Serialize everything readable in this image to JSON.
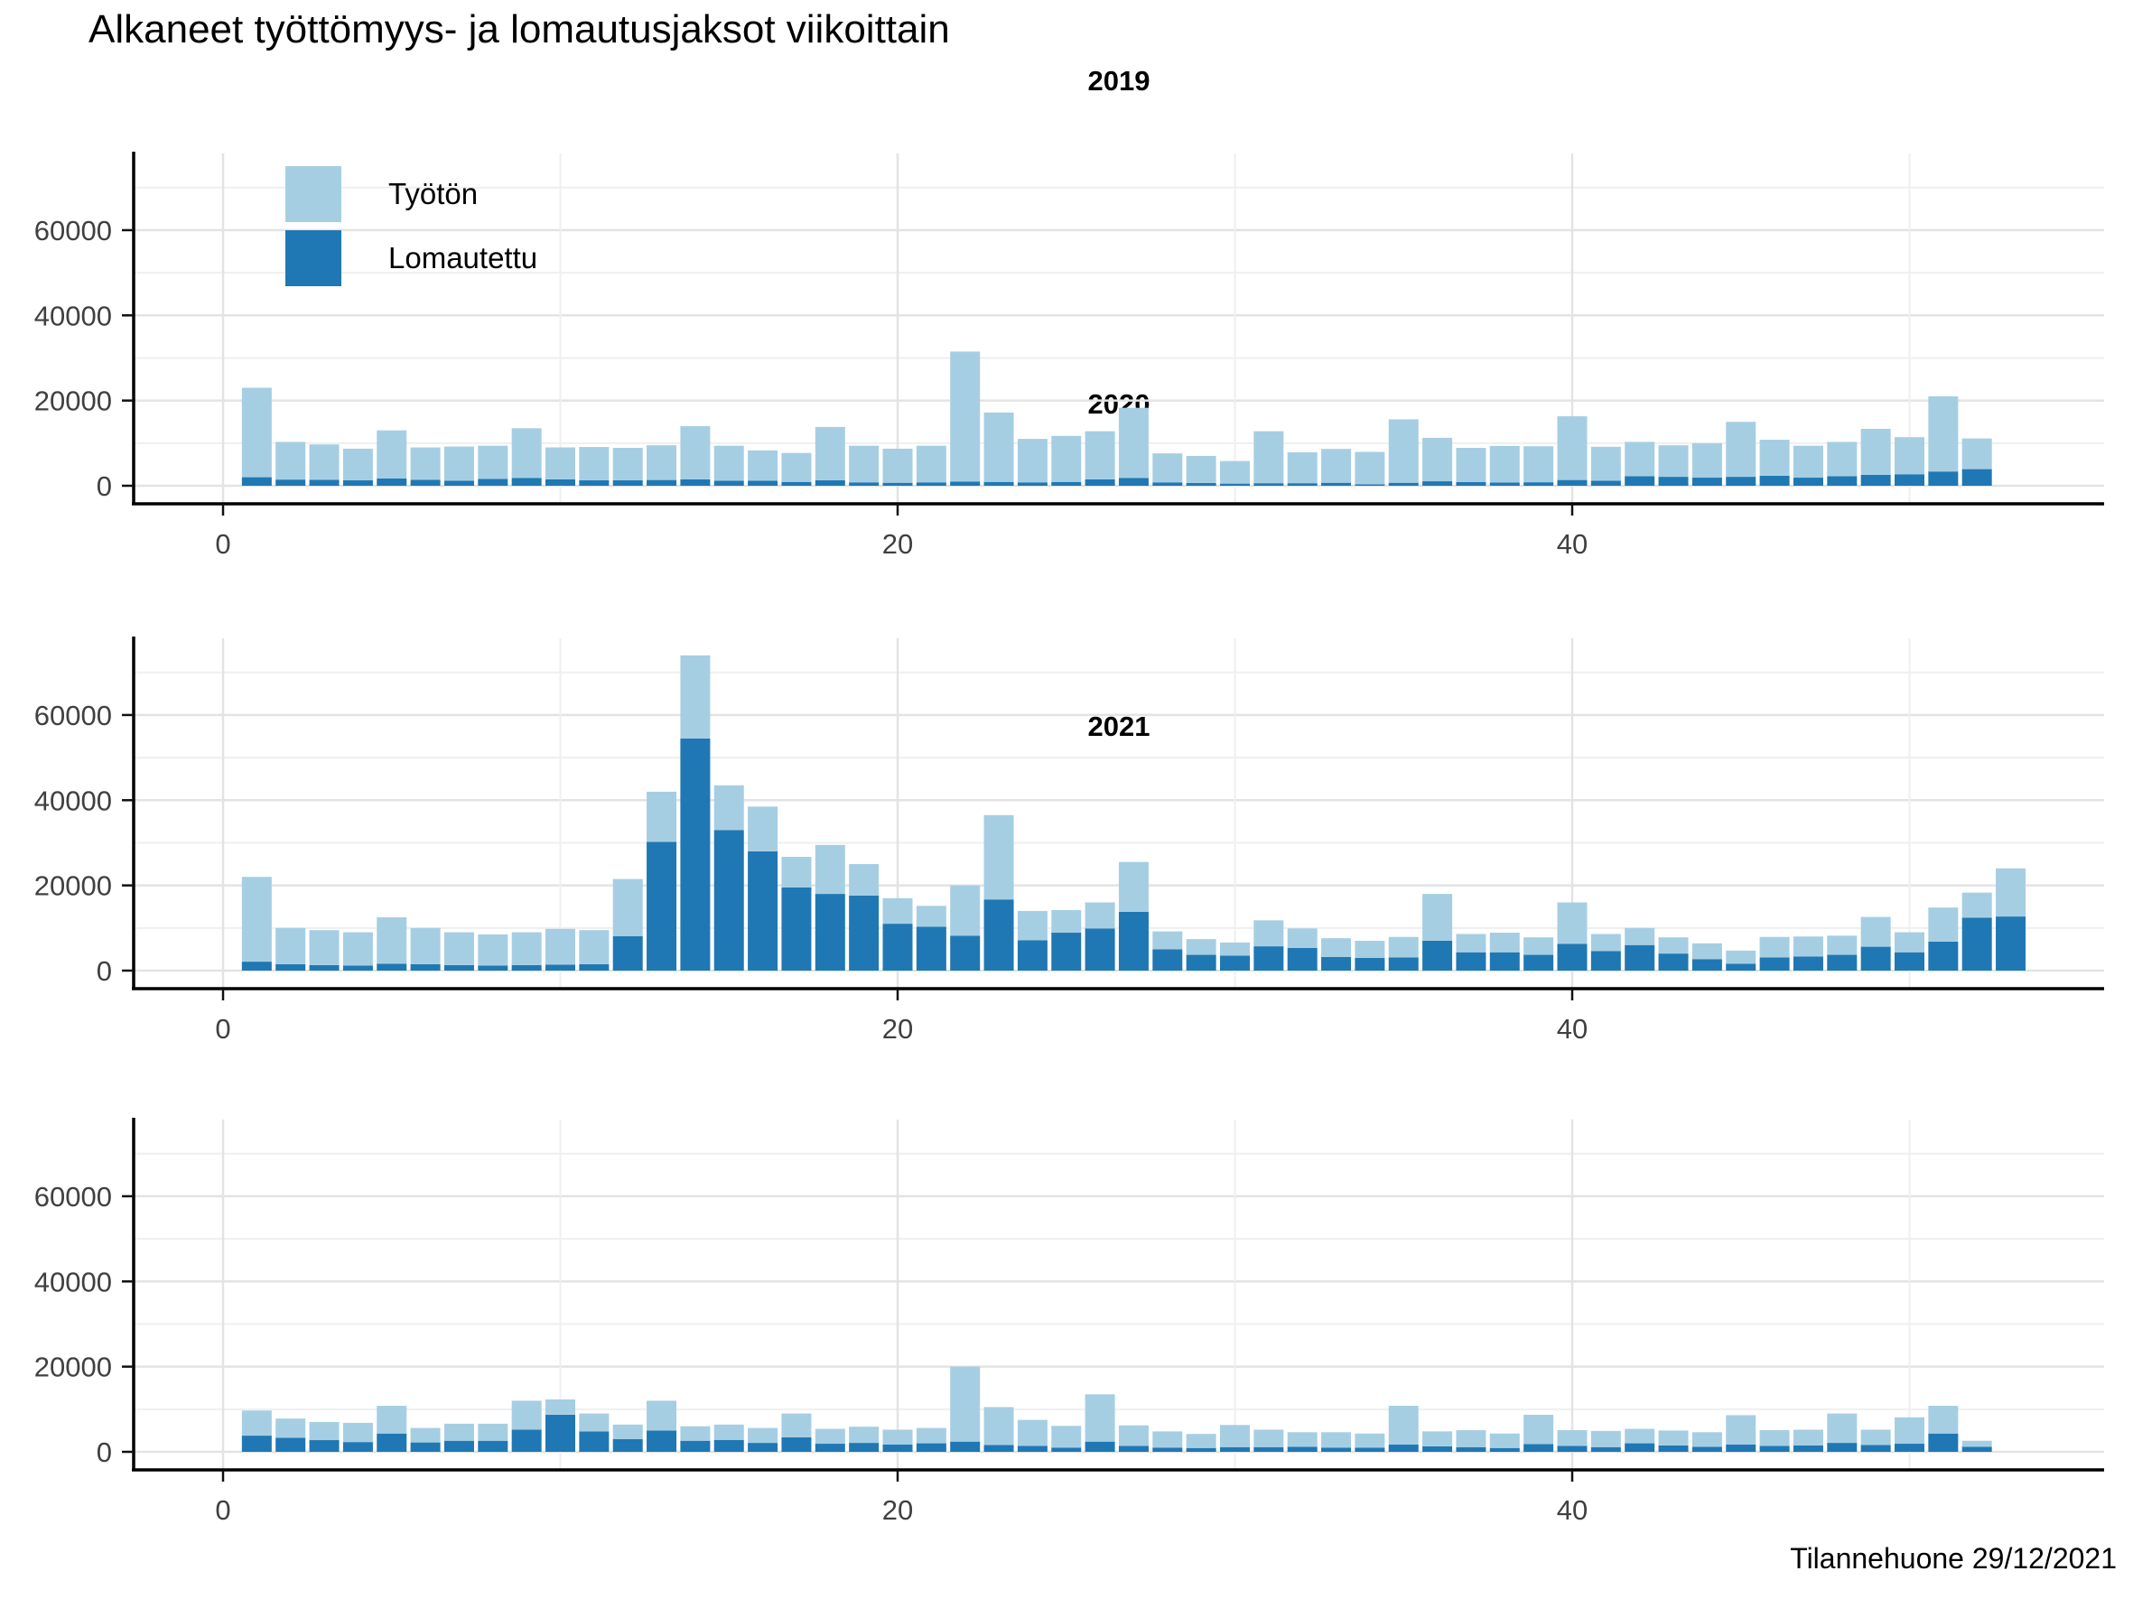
{
  "title": "Alkaneet työttömyys- ja lomautusjaksot viikoittain",
  "caption": "Tilannehuone 29/12/2021",
  "colors": {
    "tyoton": "#a6cee3",
    "lomautettu": "#1f78b4",
    "axis": "#000000",
    "tick_text": "#404040"
  },
  "legend": {
    "position": "top-left-inside-first-panel",
    "items": [
      {
        "label": "Työtön",
        "color": "#a6cee3"
      },
      {
        "label": "Lomautettu",
        "color": "#1f78b4"
      }
    ]
  },
  "chart_data": [
    {
      "type": "bar",
      "stacked": true,
      "title": "2019",
      "xlabel": "",
      "ylabel": "",
      "ylim": [
        0,
        78000
      ],
      "yticks": [
        0,
        20000,
        40000,
        60000
      ],
      "ytick_labels": [
        "0",
        "20000",
        "40000",
        "60000"
      ],
      "yminor": [
        10000,
        30000,
        50000,
        70000
      ],
      "xticks": [
        0,
        20,
        40
      ],
      "xtick_labels": [
        "0",
        "20",
        "40"
      ],
      "xminor": [
        10,
        30,
        50
      ],
      "grid": true,
      "categories": [
        1,
        2,
        3,
        4,
        5,
        6,
        7,
        8,
        9,
        10,
        11,
        12,
        13,
        14,
        15,
        16,
        17,
        18,
        19,
        20,
        21,
        22,
        23,
        24,
        25,
        26,
        27,
        28,
        29,
        30,
        31,
        32,
        33,
        34,
        35,
        36,
        37,
        38,
        39,
        40,
        41,
        42,
        43,
        44,
        45,
        46,
        47,
        48,
        49,
        50,
        51,
        52
      ],
      "series": [
        {
          "name": "Lomautettu",
          "color": "#1f78b4",
          "values": [
            2000,
            1450,
            1400,
            1300,
            1700,
            1400,
            1200,
            1600,
            1800,
            1500,
            1300,
            1300,
            1350,
            1500,
            1200,
            1200,
            900,
            1300,
            800,
            700,
            800,
            1000,
            900,
            800,
            900,
            1500,
            1800,
            800,
            650,
            500,
            600,
            600,
            700,
            350,
            700,
            1050,
            850,
            750,
            820,
            1350,
            1200,
            2250,
            2100,
            1900,
            2100,
            2350,
            1900,
            2250,
            2550,
            2700,
            3350,
            3900
          ]
        },
        {
          "name": "Työtön",
          "color": "#a6cee3",
          "values": [
            21000,
            8850,
            8300,
            7400,
            11300,
            7600,
            8000,
            7800,
            11700,
            7500,
            7800,
            7600,
            8150,
            12500,
            8200,
            7100,
            6800,
            12500,
            8600,
            8000,
            8600,
            30500,
            16300,
            10200,
            10800,
            11300,
            16500,
            6800,
            6350,
            5300,
            12200,
            7250,
            7950,
            7600,
            14900,
            10200,
            8050,
            8600,
            8460,
            14950,
            7950,
            8050,
            7400,
            8100,
            12900,
            8450,
            7500,
            8050,
            10800,
            8700,
            17650,
            7200
          ]
        }
      ]
    },
    {
      "type": "bar",
      "stacked": true,
      "title": "2020",
      "xlabel": "",
      "ylabel": "",
      "ylim": [
        0,
        78000
      ],
      "yticks": [
        0,
        20000,
        40000,
        60000
      ],
      "ytick_labels": [
        "0",
        "20000",
        "40000",
        "60000"
      ],
      "yminor": [
        10000,
        30000,
        50000,
        70000
      ],
      "xticks": [
        0,
        20,
        40
      ],
      "xtick_labels": [
        "0",
        "20",
        "40"
      ],
      "xminor": [
        10,
        30,
        50
      ],
      "grid": true,
      "categories": [
        1,
        2,
        3,
        4,
        5,
        6,
        7,
        8,
        9,
        10,
        11,
        12,
        13,
        14,
        15,
        16,
        17,
        18,
        19,
        20,
        21,
        22,
        23,
        24,
        25,
        26,
        27,
        28,
        29,
        30,
        31,
        32,
        33,
        34,
        35,
        36,
        37,
        38,
        39,
        40,
        41,
        42,
        43,
        44,
        45,
        46,
        47,
        48,
        49,
        50,
        51,
        52,
        53
      ],
      "series": [
        {
          "name": "Lomautettu",
          "color": "#1f78b4",
          "values": [
            2100,
            1500,
            1300,
            1200,
            1600,
            1500,
            1300,
            1200,
            1300,
            1400,
            1500,
            8100,
            30200,
            54500,
            33000,
            28000,
            19500,
            18000,
            17600,
            11000,
            10300,
            8200,
            16700,
            7100,
            8900,
            9900,
            13800,
            5000,
            3700,
            3500,
            5700,
            5300,
            3200,
            3000,
            3100,
            7000,
            4300,
            4300,
            3700,
            6300,
            4600,
            6000,
            4000,
            2700,
            1600,
            3100,
            3300,
            3700,
            5600,
            4300,
            6800,
            12400,
            12700
          ]
        },
        {
          "name": "Työtön",
          "color": "#a6cee3",
          "values": [
            19900,
            8500,
            8200,
            7800,
            10900,
            8500,
            7700,
            7300,
            7700,
            8400,
            8000,
            13400,
            11800,
            19500,
            10500,
            10500,
            7200,
            11500,
            7400,
            6000,
            4900,
            11800,
            19800,
            6900,
            5300,
            6100,
            11700,
            4200,
            3700,
            3100,
            6100,
            4600,
            4400,
            4000,
            4800,
            11000,
            4300,
            4600,
            4100,
            9700,
            4000,
            4000,
            3800,
            3700,
            3100,
            4800,
            4700,
            4500,
            7000,
            4700,
            8000,
            5900,
            11300
          ]
        }
      ]
    },
    {
      "type": "bar",
      "stacked": true,
      "title": "2021",
      "xlabel": "",
      "ylabel": "",
      "ylim": [
        0,
        78000
      ],
      "yticks": [
        0,
        20000,
        40000,
        60000
      ],
      "ytick_labels": [
        "0",
        "20000",
        "40000",
        "60000"
      ],
      "yminor": [
        10000,
        30000,
        50000,
        70000
      ],
      "xticks": [
        0,
        20,
        40
      ],
      "xtick_labels": [
        "0",
        "20",
        "40"
      ],
      "xminor": [
        10,
        30,
        50
      ],
      "grid": true,
      "categories": [
        1,
        2,
        3,
        4,
        5,
        6,
        7,
        8,
        9,
        10,
        11,
        12,
        13,
        14,
        15,
        16,
        17,
        18,
        19,
        20,
        21,
        22,
        23,
        24,
        25,
        26,
        27,
        28,
        29,
        30,
        31,
        32,
        33,
        34,
        35,
        36,
        37,
        38,
        39,
        40,
        41,
        42,
        43,
        44,
        45,
        46,
        47,
        48,
        49,
        50,
        51,
        52
      ],
      "series": [
        {
          "name": "Lomautettu",
          "color": "#1f78b4",
          "values": [
            3800,
            3300,
            2750,
            2300,
            4300,
            2200,
            2600,
            2600,
            5200,
            8700,
            4800,
            3000,
            5000,
            2600,
            2800,
            2100,
            3400,
            1900,
            2100,
            1700,
            2000,
            2400,
            1600,
            1400,
            1000,
            2400,
            1400,
            1000,
            900,
            1100,
            1100,
            1200,
            1000,
            1000,
            1700,
            1300,
            1100,
            900,
            1800,
            1400,
            1100,
            2000,
            1500,
            1200,
            1700,
            1400,
            1500,
            2100,
            1600,
            1900,
            4300,
            1200
          ]
        },
        {
          "name": "Työtön",
          "color": "#a6cee3",
          "values": [
            5900,
            4500,
            4250,
            4500,
            6500,
            3400,
            4000,
            4000,
            6800,
            3600,
            4200,
            3400,
            7000,
            3400,
            3600,
            3500,
            5600,
            3500,
            3800,
            3500,
            3600,
            17600,
            8900,
            6100,
            5100,
            11100,
            4800,
            3800,
            3300,
            5200,
            4100,
            3400,
            3600,
            3300,
            9100,
            3500,
            4000,
            3400,
            6900,
            3700,
            3800,
            3400,
            3500,
            3400,
            6900,
            3700,
            3700,
            6900,
            3600,
            6200,
            6500,
            1400
          ]
        }
      ]
    }
  ]
}
